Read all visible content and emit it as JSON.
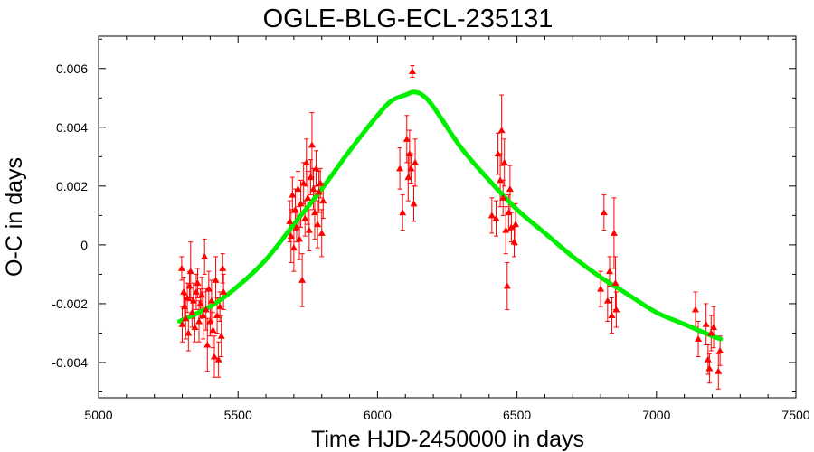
{
  "chart_data": {
    "type": "scatter",
    "title": "OGLE-BLG-ECL-235131",
    "xlabel": "Time HJD-2450000 in days",
    "ylabel": "O-C in days",
    "xlim": [
      5000,
      7500
    ],
    "ylim": [
      -0.0052,
      0.0071
    ],
    "grid": false,
    "x_ticks": [
      5000,
      5500,
      6000,
      6500,
      7000,
      7500
    ],
    "x_tick_labels": [
      "5000",
      "5500",
      "6000",
      "6500",
      "7000",
      "7500"
    ],
    "y_ticks": [
      -0.004,
      -0.002,
      0,
      0.002,
      0.004,
      0.006
    ],
    "y_tick_labels": [
      "-0.004",
      "-0.002",
      "0",
      "0.002",
      "0.004",
      "0.006"
    ],
    "colors": {
      "points": "#ff0000",
      "fit": "#00ee00"
    },
    "series": [
      {
        "style": "triangles-with-errorbars",
        "points": [
          [
            5298,
            -0.0008,
            0.0004
          ],
          [
            5300,
            -0.0027,
            0.0006
          ],
          [
            5305,
            -0.0016,
            0.0005
          ],
          [
            5308,
            -0.0021,
            0.0004
          ],
          [
            5312,
            -0.0025,
            0.0007
          ],
          [
            5318,
            -0.0018,
            0.0005
          ],
          [
            5322,
            -0.003,
            0.0006
          ],
          [
            5326,
            -0.0014,
            0.0005
          ],
          [
            5330,
            -0.0009,
            0.001
          ],
          [
            5335,
            -0.0023,
            0.0005
          ],
          [
            5340,
            -0.0019,
            0.0006
          ],
          [
            5345,
            -0.0028,
            0.0005
          ],
          [
            5350,
            -0.0016,
            0.0006
          ],
          [
            5355,
            -0.0013,
            0.0005
          ],
          [
            5360,
            -0.0026,
            0.0007
          ],
          [
            5365,
            -0.002,
            0.0005
          ],
          [
            5370,
            -0.0017,
            0.0006
          ],
          [
            5375,
            -0.0024,
            0.0008
          ],
          [
            5380,
            -0.0004,
            0.0006
          ],
          [
            5385,
            -0.0022,
            0.0007
          ],
          [
            5390,
            -0.0034,
            0.0009
          ],
          [
            5395,
            -0.0015,
            0.0006
          ],
          [
            5400,
            -0.0026,
            0.0005
          ],
          [
            5405,
            -0.0019,
            0.0007
          ],
          [
            5410,
            -0.0029,
            0.0006
          ],
          [
            5415,
            -0.0038,
            0.0007
          ],
          [
            5420,
            -0.0012,
            0.0008
          ],
          [
            5425,
            -0.0024,
            0.0006
          ],
          [
            5430,
            -0.0039,
            0.0006
          ],
          [
            5435,
            -0.0021,
            0.0005
          ],
          [
            5440,
            -0.0031,
            0.0007
          ],
          [
            5445,
            -0.0008,
            0.0005
          ],
          [
            5448,
            -0.0016,
            0.0006
          ],
          [
            5685,
            0.0008,
            0.0007
          ],
          [
            5690,
            0.0003,
            0.0009
          ],
          [
            5695,
            0.0017,
            0.0006
          ],
          [
            5700,
            -0.0001,
            0.0008
          ],
          [
            5705,
            0.0012,
            0.0007
          ],
          [
            5710,
            0.0006,
            0.0005
          ],
          [
            5715,
            0.0019,
            0.0006
          ],
          [
            5720,
            0.0002,
            0.0007
          ],
          [
            5725,
            0.0014,
            0.0008
          ],
          [
            5730,
            -0.0012,
            0.0009
          ],
          [
            5735,
            0.0021,
            0.0007
          ],
          [
            5740,
            0.0009,
            0.0006
          ],
          [
            5745,
            0.0028,
            0.0008
          ],
          [
            5750,
            0.0016,
            0.0009
          ],
          [
            5755,
            0.0005,
            0.0007
          ],
          [
            5760,
            0.0023,
            0.0006
          ],
          [
            5765,
            0.0034,
            0.0011
          ],
          [
            5770,
            0.0019,
            0.0007
          ],
          [
            5775,
            0.0011,
            0.0009
          ],
          [
            5780,
            0.0026,
            0.0006
          ],
          [
            5785,
            0.0007,
            0.0008
          ],
          [
            5790,
            0.0018,
            0.0007
          ],
          [
            5795,
            0.0021,
            0.0005
          ],
          [
            5800,
            0.0004,
            0.0008
          ],
          [
            5805,
            0.0015,
            0.0006
          ],
          [
            6080,
            0.0026,
            0.0007
          ],
          [
            6090,
            0.0011,
            0.0006
          ],
          [
            6105,
            0.0036,
            0.0008
          ],
          [
            6110,
            0.0023,
            0.0008
          ],
          [
            6115,
            0.0031,
            0.0008
          ],
          [
            6120,
            0.0026,
            0.0005
          ],
          [
            6125,
            0.0059,
            0.0002
          ],
          [
            6130,
            0.0014,
            0.0006
          ],
          [
            6135,
            0.0028,
            0.0008
          ],
          [
            6425,
            0.0009,
            0.0006
          ],
          [
            6432,
            0.0031,
            0.0007
          ],
          [
            6440,
            0.0022,
            0.0009
          ],
          [
            6445,
            0.0039,
            0.0012
          ],
          [
            6450,
            0.0016,
            0.0006
          ],
          [
            6455,
            0.0028,
            0.0008
          ],
          [
            6460,
            0.0005,
            0.0008
          ],
          [
            6465,
            -0.0014,
            0.0008
          ],
          [
            6470,
            0.0011,
            0.0006
          ],
          [
            6475,
            0.0019,
            0.0008
          ],
          [
            6480,
            0.0006,
            0.0005
          ],
          [
            6490,
            0.0001,
            0.0005
          ],
          [
            6495,
            0.0007,
            0.0007
          ],
          [
            6410,
            0.001,
            0.0006
          ],
          [
            6800,
            -0.0015,
            0.0006
          ],
          [
            6812,
            0.0011,
            0.0006
          ],
          [
            6825,
            -0.0019,
            0.0007
          ],
          [
            6832,
            -0.0009,
            0.0005
          ],
          [
            6840,
            -0.0024,
            0.0006
          ],
          [
            6848,
            0.0004,
            0.0012
          ],
          [
            6853,
            -0.0013,
            0.0009
          ],
          [
            6856,
            -0.0022,
            0.0006
          ],
          [
            7140,
            -0.0022,
            0.0006
          ],
          [
            7150,
            -0.0032,
            0.0006
          ],
          [
            7178,
            -0.0027,
            0.0007
          ],
          [
            7185,
            -0.0039,
            0.0005
          ],
          [
            7190,
            -0.0042,
            0.0005
          ],
          [
            7196,
            -0.003,
            0.0006
          ],
          [
            7205,
            -0.0028,
            0.0007
          ],
          [
            7222,
            -0.0043,
            0.0006
          ],
          [
            7228,
            -0.0036,
            0.0005
          ]
        ]
      },
      {
        "style": "fit-line",
        "x": [
          5290,
          5400,
          5500,
          5600,
          5700,
          5800,
          5900,
          6000,
          6050,
          6100,
          6130,
          6160,
          6200,
          6300,
          6400,
          6500,
          6600,
          6700,
          6800,
          6900,
          7000,
          7100,
          7200,
          7230
        ],
        "y": [
          -0.0026,
          -0.0021,
          -0.0014,
          -0.0005,
          0.0007,
          0.0019,
          0.0032,
          0.0044,
          0.0049,
          0.0051,
          0.0052,
          0.0051,
          0.0047,
          0.0033,
          0.0022,
          0.0012,
          0.0004,
          -0.0004,
          -0.0011,
          -0.0017,
          -0.0023,
          -0.0027,
          -0.0031,
          -0.0032
        ]
      }
    ]
  }
}
